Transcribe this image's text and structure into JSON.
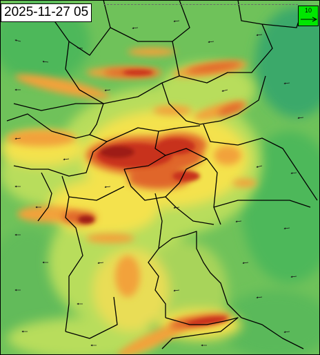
{
  "map": {
    "timestamp": "2025-11-27 05",
    "legend": {
      "wind_reference_label": "10",
      "box_color": "#00e600"
    },
    "colors": {
      "background": "#6fc25a",
      "low_green": "#4db85a",
      "teal_green": "#3aa96a",
      "yellow_green": "#b8dd5c",
      "yellow": "#f4e24e",
      "orange": "#f2a23a",
      "orange_red": "#e0662c",
      "red": "#c8321f",
      "dark_red": "#9e1e14",
      "borders": "#000000",
      "wind_arrows": "#1a1a1a"
    }
  }
}
